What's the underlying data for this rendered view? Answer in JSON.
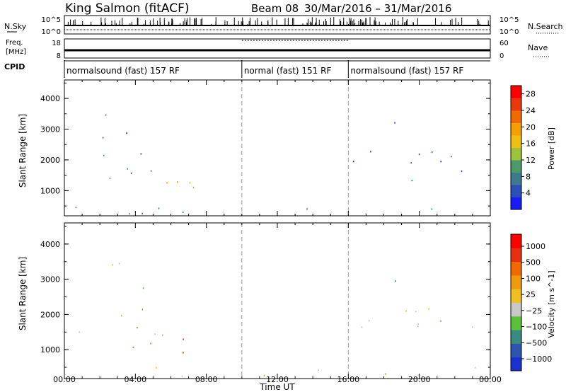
{
  "header": {
    "station": "King Salmon (fitACF)",
    "beam": "Beam 08",
    "date_range": "30/Mar/2016 – 31/Mar/2016"
  },
  "strip": {
    "nsky_label": "N.Sky",
    "nsearch_label": "N.Search",
    "top_ticks_left": [
      "10^5",
      "10^0"
    ],
    "top_ticks_right": [
      "10^5",
      "10^0"
    ],
    "freq_label": "Freq.",
    "freq_unit": "[MHz]",
    "freq_ticks": [
      "18",
      "8"
    ],
    "nave_label": "Nave",
    "nave_ticks": [
      "60",
      "0"
    ],
    "cpid_label": "CPID",
    "cpid_segments": [
      {
        "label": "normalsound (fast) 157 RF",
        "start_hour": 0,
        "end_hour": 10
      },
      {
        "label": "normal (fast) 151 RF",
        "start_hour": 10,
        "end_hour": 16
      },
      {
        "label": "normalsound (fast) 157 RF",
        "start_hour": 16,
        "end_hour": 24
      }
    ]
  },
  "axes": {
    "ylabel": "Slant Range [km]",
    "xlabel": "Time UT",
    "x_tick_labels": [
      "00:00",
      "04:00",
      "08:00",
      "12:00",
      "16:00",
      "20:00",
      "00:00"
    ],
    "x_ticks_hours": [
      0,
      4,
      8,
      12,
      16,
      20,
      24
    ],
    "y_ticks": [
      1000,
      2000,
      3000,
      4000
    ],
    "xlim_hours": [
      0,
      24
    ],
    "ylim_km": [
      180,
      4600
    ],
    "dashed_lines_hours": [
      10,
      16
    ]
  },
  "chart_data": [
    {
      "type": "heatmap",
      "name": "power",
      "colorbar_label": "Power [dB]",
      "colorbar_ticks": [
        4,
        8,
        12,
        16,
        20,
        24,
        28
      ],
      "colorbar_range": [
        0,
        30
      ],
      "colors": [
        "#1a1aff",
        "#2b4fb8",
        "#3d7a8f",
        "#4c9a6b",
        "#9ec33a",
        "#f0c010",
        "#f5a000",
        "#f06a00",
        "#e8380c",
        "#ff0000"
      ],
      "scatter_regions": [
        {
          "t0": 0,
          "t1": 6,
          "r0": 1400,
          "r1": 2000,
          "level": 2
        },
        {
          "t0": 1.5,
          "t1": 5,
          "r0": 1900,
          "r1": 2300,
          "level": 2
        },
        {
          "t0": 3.8,
          "t1": 8.6,
          "r0": 900,
          "r1": 1700,
          "level": 5
        },
        {
          "t0": 2,
          "t1": 5,
          "r0": 2600,
          "r1": 3500,
          "level": 1
        },
        {
          "t0": 16,
          "t1": 24,
          "r0": 1300,
          "r1": 2300,
          "level": 1
        },
        {
          "t0": 17.8,
          "t1": 18.8,
          "r0": 2300,
          "r1": 3500,
          "level": 1
        },
        {
          "t0": 10,
          "t1": 10.5,
          "r0": 1600,
          "r1": 2000,
          "level": 3
        },
        {
          "t0": 0,
          "t1": 24,
          "r0": 250,
          "r1": 520,
          "level": 3
        }
      ]
    },
    {
      "type": "heatmap",
      "name": "velocity",
      "colorbar_label": "Velocity [m s^-1]",
      "colorbar_ticks": [
        "1000",
        "500",
        "100",
        "25",
        "−25",
        "−100",
        "−500",
        "−1000"
      ],
      "colors": [
        "#1a30d0",
        "#2b55b0",
        "#3a8a80",
        "#5dc03a",
        "#c8c8c8",
        "#f0c020",
        "#f09a10",
        "#f06a00",
        "#e83010",
        "#ff0000"
      ],
      "scatter_regions": [
        {
          "t0": 0,
          "t1": 6,
          "r0": 1400,
          "r1": 2000,
          "level": 4
        },
        {
          "t0": 1.5,
          "t1": 5,
          "r0": 1900,
          "r1": 2300,
          "level": 4
        },
        {
          "t0": 3.8,
          "t1": 6.5,
          "r0": 900,
          "r1": 1600,
          "level": 3
        },
        {
          "t0": 6.5,
          "t1": 8.6,
          "r0": 900,
          "r1": 1700,
          "level": 7
        },
        {
          "t0": 2,
          "t1": 5,
          "r0": 2600,
          "r1": 3500,
          "level": 4
        },
        {
          "t0": 16,
          "t1": 24,
          "r0": 1300,
          "r1": 2300,
          "level": 4
        },
        {
          "t0": 17.8,
          "t1": 18.8,
          "r0": 2300,
          "r1": 3500,
          "level": 1
        },
        {
          "t0": 10,
          "t1": 10.5,
          "r0": 1600,
          "r1": 2000,
          "level": 3
        },
        {
          "t0": 0,
          "t1": 24,
          "r0": 250,
          "r1": 520,
          "level": 5
        }
      ]
    }
  ]
}
